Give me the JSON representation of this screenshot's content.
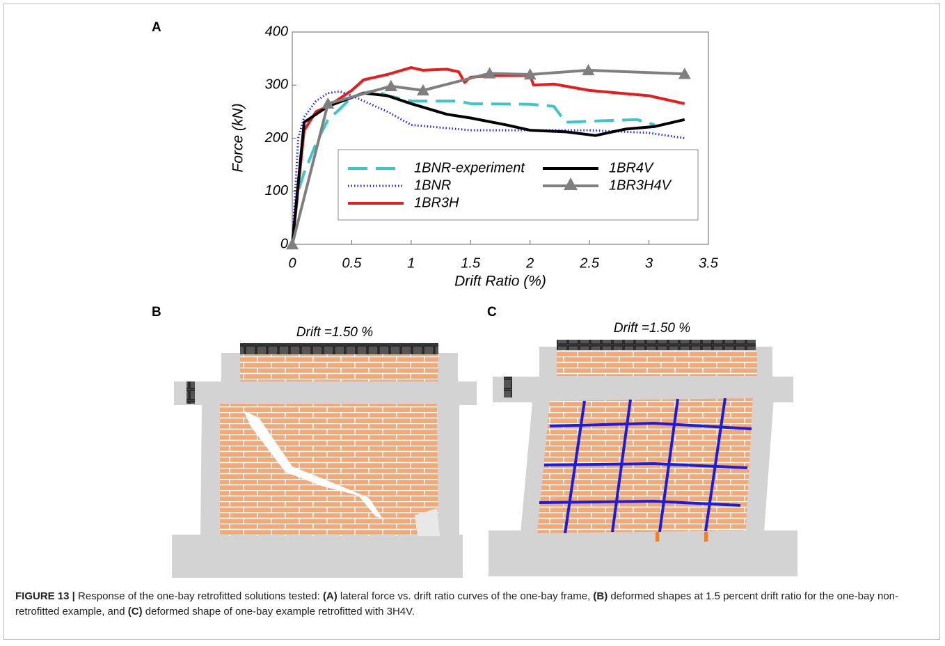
{
  "chart_data": {
    "type": "line",
    "panel_label": "A",
    "x_label": "Drift Ratio (%)",
    "y_label": "Force (kN)",
    "xlim": [
      0,
      3.5
    ],
    "ylim": [
      0,
      400
    ],
    "xticks": [
      0,
      0.5,
      1,
      1.5,
      2,
      2.5,
      3,
      3.5
    ],
    "yticks": [
      0,
      100,
      200,
      300,
      400
    ],
    "grid": false,
    "series": [
      {
        "name": "1BNR-experiment",
        "color": "#3ec6c6",
        "dash": "dashed",
        "marker": "none",
        "x": [
          0,
          0.05,
          0.1,
          0.2,
          0.3,
          0.4,
          0.5,
          0.6,
          0.7,
          0.8,
          1.0,
          1.4,
          1.5,
          2.0,
          2.2,
          2.3,
          2.5,
          2.9,
          3.05
        ],
        "values": [
          0,
          100,
          135,
          190,
          235,
          255,
          277,
          285,
          290,
          280,
          270,
          270,
          265,
          264,
          260,
          230,
          232,
          235,
          225
        ]
      },
      {
        "name": "1BNR",
        "color": "#1c1ce0",
        "dash": "dotted",
        "marker": "none",
        "x": [
          0,
          0.05,
          0.1,
          0.2,
          0.3,
          0.4,
          0.5,
          0.6,
          0.8,
          1.0,
          1.5,
          2.0,
          2.5,
          3.0,
          3.3
        ],
        "values": [
          0,
          200,
          240,
          270,
          285,
          288,
          280,
          270,
          250,
          225,
          215,
          215,
          215,
          210,
          200
        ]
      },
      {
        "name": "1BR3H",
        "color": "#e41e1e",
        "dash": "solid",
        "marker": "none",
        "x": [
          0,
          0.1,
          0.2,
          0.3,
          0.5,
          0.6,
          0.7,
          0.8,
          1.0,
          1.1,
          1.3,
          1.4,
          1.45,
          1.5,
          1.7,
          2.0,
          2.03,
          2.2,
          2.5,
          3.0,
          3.3
        ],
        "values": [
          0,
          215,
          250,
          260,
          290,
          310,
          315,
          320,
          333,
          328,
          330,
          325,
          305,
          315,
          318,
          318,
          300,
          302,
          290,
          280,
          265
        ]
      },
      {
        "name": "1BR4V",
        "color": "#000000",
        "dash": "solid",
        "marker": "none",
        "x": [
          0,
          0.1,
          0.3,
          0.6,
          0.8,
          1.0,
          1.3,
          1.5,
          1.8,
          2.0,
          2.3,
          2.55,
          2.8,
          3.05,
          3.3
        ],
        "values": [
          0,
          230,
          260,
          285,
          280,
          265,
          245,
          238,
          225,
          215,
          212,
          205,
          217,
          222,
          235
        ]
      },
      {
        "name": "1BR3H4V",
        "color": "#7f7f7f",
        "dash": "solid",
        "marker": "triangle",
        "x": [
          0,
          0.3,
          0.83,
          1.1,
          1.66,
          2.0,
          2.49,
          3.3
        ],
        "values": [
          0,
          265,
          298,
          290,
          322,
          320,
          328,
          321
        ]
      }
    ]
  },
  "panels": [
    {
      "label": "B",
      "drift": "Drift =1.50 %"
    },
    {
      "label": "C",
      "drift": "Drift =1.50 %"
    }
  ],
  "caption": [
    {
      "text": "FIGURE 13 |",
      "bold": true
    },
    {
      "text": " Response of the one-bay retrofitted solutions tested: ",
      "bold": false
    },
    {
      "text": "(A)",
      "bold": true
    },
    {
      "text": " lateral force vs. drift ratio curves of the one-bay frame, ",
      "bold": false
    },
    {
      "text": "(B)",
      "bold": true
    },
    {
      "text": " deformed shapes at 1.5 percent drift ratio for the one-bay non-retrofitted example, and ",
      "bold": false
    },
    {
      "text": "(C)",
      "bold": true
    },
    {
      "text": " deformed shape of one-bay example retrofitted with 3H4V.",
      "bold": false
    }
  ]
}
